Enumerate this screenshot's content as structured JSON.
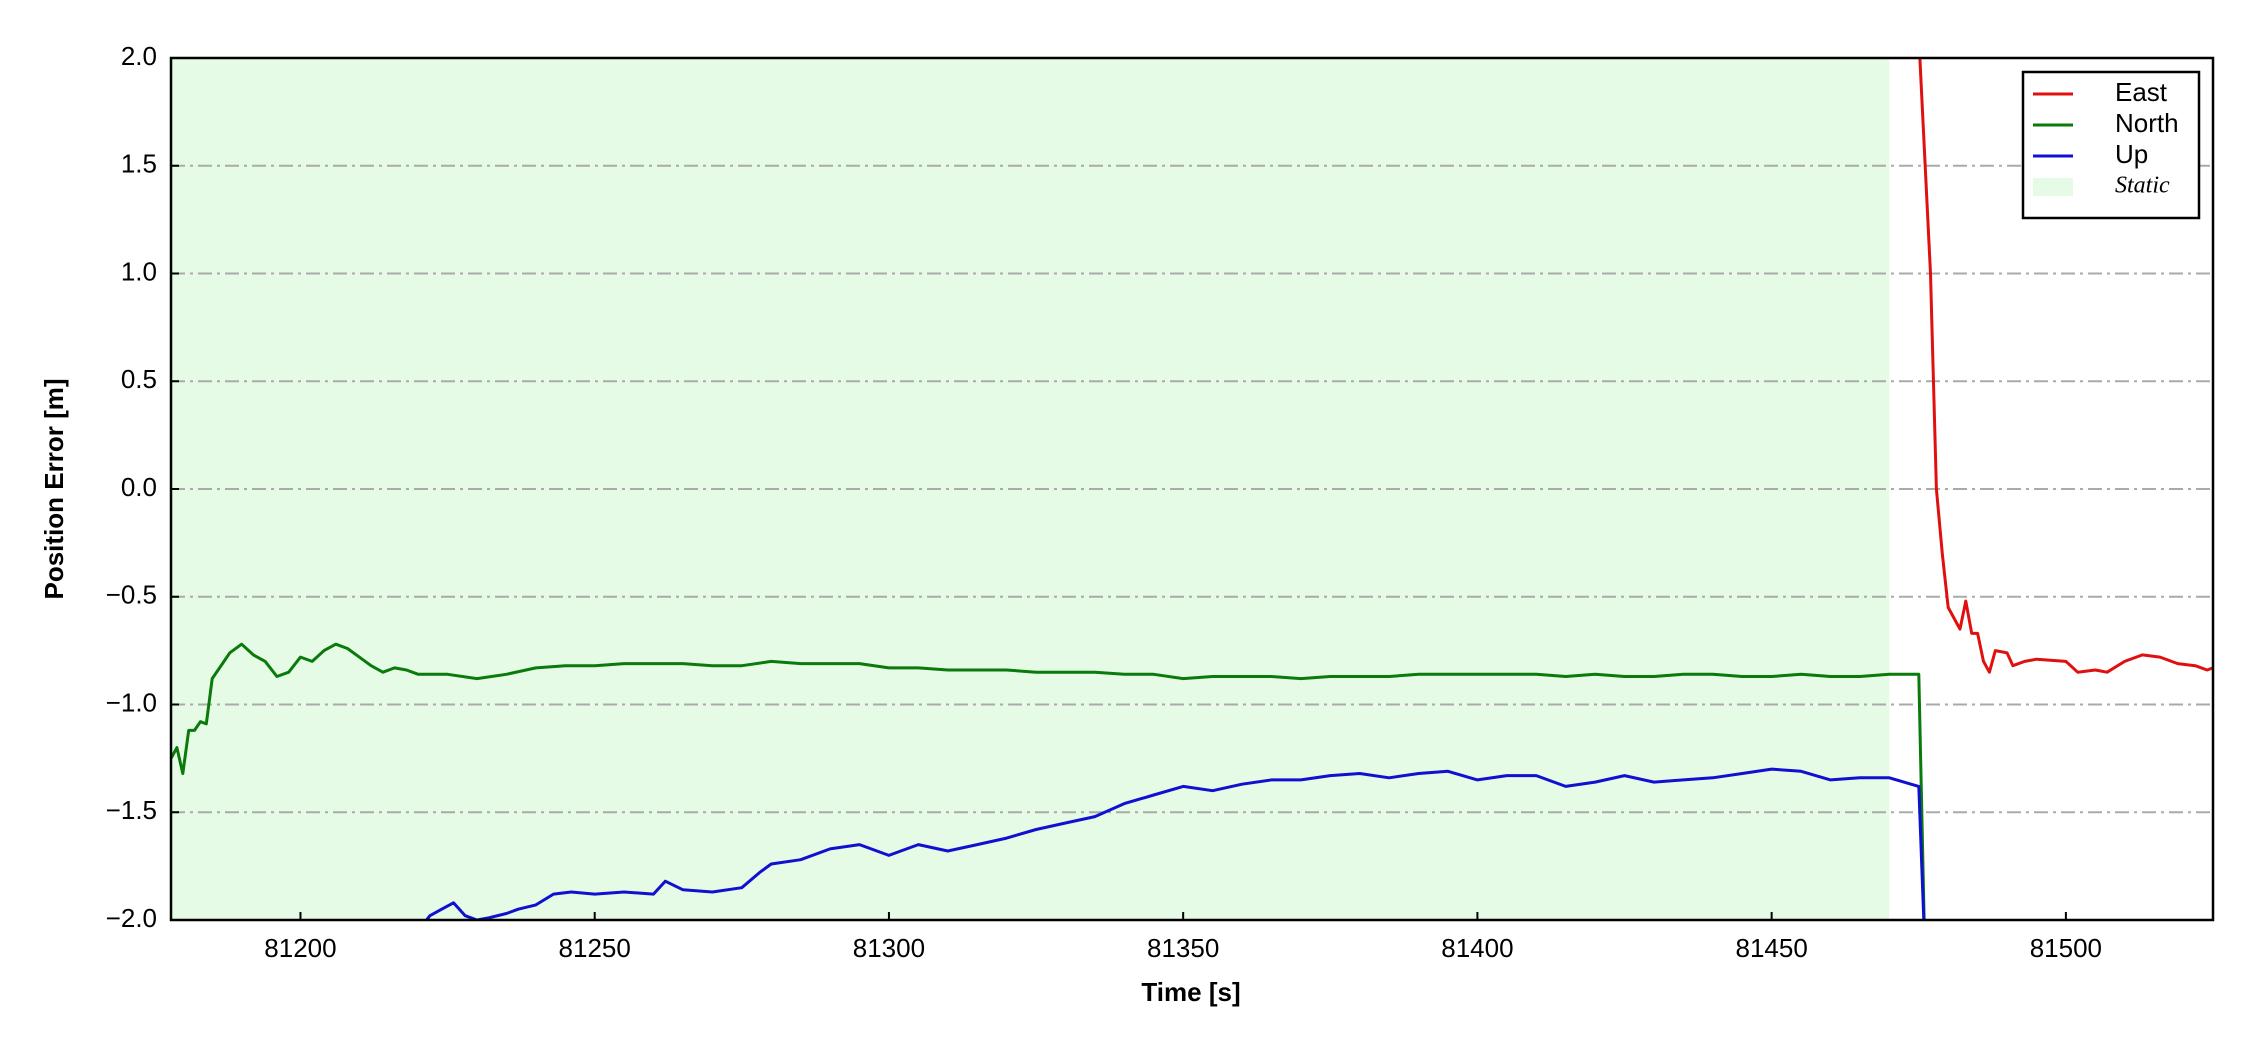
{
  "chart_data": {
    "type": "line",
    "xlabel": "Time [s]",
    "ylabel": "Position Error [m]",
    "xlim": [
      81178,
      81525
    ],
    "ylim": [
      -2,
      2
    ],
    "xticks": [
      81200,
      81250,
      81300,
      81350,
      81400,
      81450,
      81500
    ],
    "yticks": [
      {
        "value": 2,
        "label": "2.0"
      },
      {
        "value": 1.5,
        "label": "1.5"
      },
      {
        "value": 1,
        "label": "1.0"
      },
      {
        "value": 0.5,
        "label": "0.5"
      },
      {
        "value": 0,
        "label": "0.0"
      },
      {
        "value": -0.5,
        "label": "−0.5"
      },
      {
        "value": -1,
        "label": "−1.0"
      },
      {
        "value": -1.5,
        "label": "−1.5"
      },
      {
        "value": -2,
        "label": "−2.0"
      }
    ],
    "grid": true,
    "legend": "upper right",
    "shaded_regions": [
      {
        "name": "Static",
        "start": 81178,
        "end": 81470,
        "color": "#e6fbe6"
      }
    ],
    "series": [
      {
        "name": "East",
        "color": "#e01010",
        "x": [
          81475,
          81477,
          81478,
          81479,
          81480,
          81482,
          81483,
          81484,
          81485,
          81486,
          81487,
          81488,
          81490,
          81491,
          81493,
          81495,
          81500,
          81502,
          81505,
          81507,
          81510,
          81513,
          81516,
          81519,
          81522,
          81524,
          81525
        ],
        "values": [
          2.1,
          1.0,
          0.0,
          -0.3,
          -0.55,
          -0.65,
          -0.52,
          -0.67,
          -0.67,
          -0.8,
          -0.85,
          -0.75,
          -0.76,
          -0.82,
          -0.8,
          -0.79,
          -0.8,
          -0.85,
          -0.84,
          -0.85,
          -0.8,
          -0.77,
          -0.78,
          -0.81,
          -0.82,
          -0.84,
          -0.83
        ]
      },
      {
        "name": "North",
        "color": "#0a7a0a",
        "x": [
          81178,
          81179,
          81180,
          81181,
          81182,
          81183,
          81184,
          81185,
          81187,
          81188,
          81190,
          81192,
          81194,
          81196,
          81198,
          81200,
          81202,
          81204,
          81206,
          81208,
          81210,
          81212,
          81214,
          81216,
          81218,
          81220,
          81225,
          81230,
          81235,
          81240,
          81245,
          81250,
          81255,
          81260,
          81265,
          81270,
          81275,
          81280,
          81285,
          81290,
          81295,
          81300,
          81305,
          81310,
          81315,
          81320,
          81325,
          81330,
          81335,
          81340,
          81345,
          81350,
          81355,
          81360,
          81365,
          81370,
          81375,
          81380,
          81385,
          81390,
          81395,
          81400,
          81405,
          81410,
          81415,
          81420,
          81425,
          81430,
          81435,
          81440,
          81445,
          81450,
          81455,
          81460,
          81465,
          81470,
          81475,
          81476
        ],
        "values": [
          -1.25,
          -1.2,
          -1.32,
          -1.12,
          -1.12,
          -1.08,
          -1.09,
          -0.88,
          -0.8,
          -0.76,
          -0.72,
          -0.77,
          -0.8,
          -0.87,
          -0.85,
          -0.78,
          -0.8,
          -0.75,
          -0.72,
          -0.74,
          -0.78,
          -0.82,
          -0.85,
          -0.83,
          -0.84,
          -0.86,
          -0.86,
          -0.88,
          -0.86,
          -0.83,
          -0.82,
          -0.82,
          -0.81,
          -0.81,
          -0.81,
          -0.82,
          -0.82,
          -0.8,
          -0.81,
          -0.81,
          -0.81,
          -0.83,
          -0.83,
          -0.84,
          -0.84,
          -0.84,
          -0.85,
          -0.85,
          -0.85,
          -0.86,
          -0.86,
          -0.88,
          -0.87,
          -0.87,
          -0.87,
          -0.88,
          -0.87,
          -0.87,
          -0.87,
          -0.86,
          -0.86,
          -0.86,
          -0.86,
          -0.86,
          -0.87,
          -0.86,
          -0.87,
          -0.87,
          -0.86,
          -0.86,
          -0.87,
          -0.87,
          -0.86,
          -0.87,
          -0.87,
          -0.86,
          -0.86,
          -2.1
        ]
      },
      {
        "name": "Up",
        "color": "#1010d0",
        "x": [
          81220,
          81222,
          81224,
          81226,
          81228,
          81230,
          81232,
          81235,
          81237,
          81240,
          81243,
          81246,
          81250,
          81255,
          81260,
          81262,
          81265,
          81270,
          81275,
          81278,
          81280,
          81285,
          81290,
          81295,
          81300,
          81303,
          81305,
          81310,
          81315,
          81320,
          81325,
          81330,
          81335,
          81340,
          81345,
          81350,
          81355,
          81360,
          81365,
          81370,
          81375,
          81380,
          81385,
          81390,
          81395,
          81400,
          81405,
          81410,
          81415,
          81420,
          81425,
          81430,
          81435,
          81440,
          81445,
          81450,
          81455,
          81460,
          81465,
          81470,
          81475,
          81476
        ],
        "values": [
          -2.05,
          -1.98,
          -1.95,
          -1.92,
          -1.98,
          -2.0,
          -1.99,
          -1.97,
          -1.95,
          -1.93,
          -1.88,
          -1.87,
          -1.88,
          -1.87,
          -1.88,
          -1.82,
          -1.86,
          -1.87,
          -1.85,
          -1.78,
          -1.74,
          -1.72,
          -1.67,
          -1.65,
          -1.7,
          -1.67,
          -1.65,
          -1.68,
          -1.65,
          -1.62,
          -1.58,
          -1.55,
          -1.52,
          -1.46,
          -1.42,
          -1.38,
          -1.4,
          -1.37,
          -1.35,
          -1.35,
          -1.33,
          -1.32,
          -1.34,
          -1.32,
          -1.31,
          -1.35,
          -1.33,
          -1.33,
          -1.38,
          -1.36,
          -1.33,
          -1.36,
          -1.35,
          -1.34,
          -1.32,
          -1.3,
          -1.31,
          -1.35,
          -1.34,
          -1.34,
          -1.38,
          -2.1
        ]
      }
    ]
  }
}
